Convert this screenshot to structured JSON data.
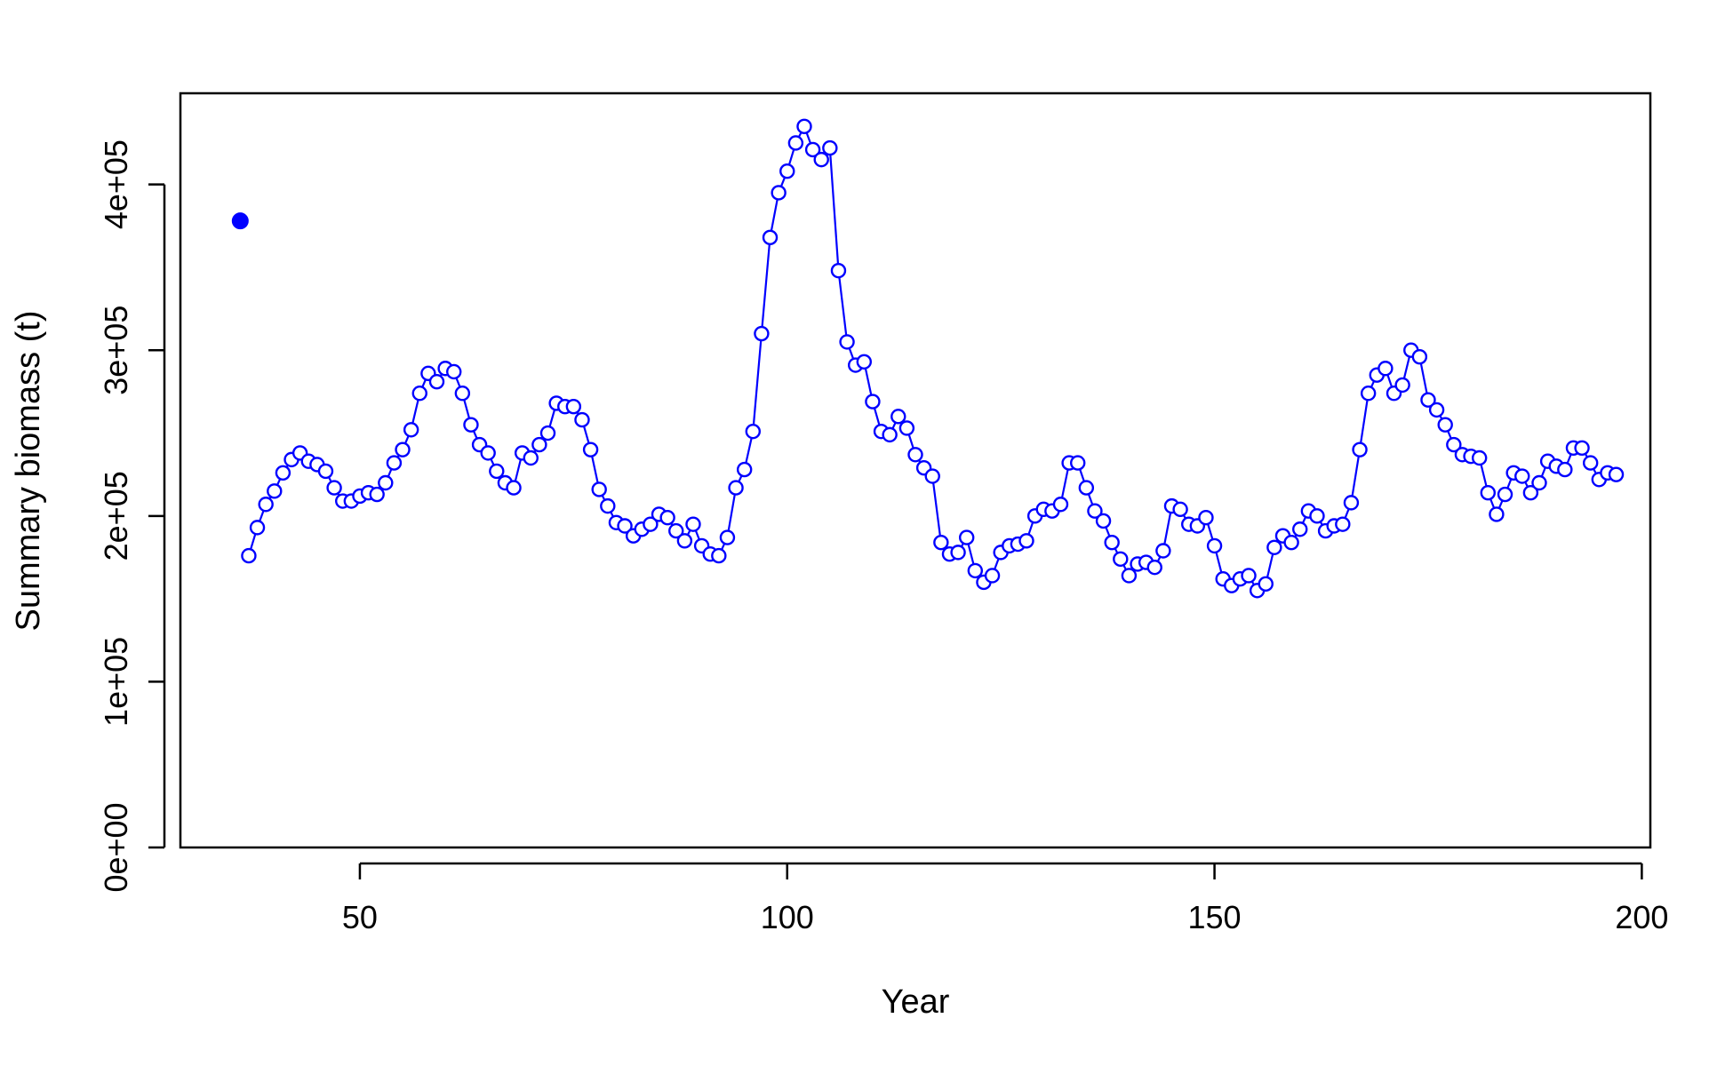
{
  "chart_data": {
    "type": "line",
    "xlabel": "Year",
    "ylabel": "Summary biomass (t)",
    "xlim": [
      29,
      201
    ],
    "ylim": [
      0,
      455000
    ],
    "xticks": [
      50,
      100,
      150,
      200
    ],
    "xtick_labels": [
      "50",
      "100",
      "150",
      "200"
    ],
    "yticks": [
      0,
      100000,
      200000,
      300000,
      400000
    ],
    "ytick_labels": [
      "0e+00",
      "1e+05",
      "2e+05",
      "3e+05",
      "4e+05"
    ],
    "grid": false,
    "legend": false,
    "color": "#0000ff",
    "series": [
      {
        "style": "line-with-open-circles",
        "x": [
          37,
          38,
          39,
          40,
          41,
          42,
          43,
          44,
          45,
          46,
          47,
          48,
          49,
          50,
          51,
          52,
          53,
          54,
          55,
          56,
          57,
          58,
          59,
          60,
          61,
          62,
          63,
          64,
          65,
          66,
          67,
          68,
          69,
          70,
          71,
          72,
          73,
          74,
          75,
          76,
          77,
          78,
          79,
          80,
          81,
          82,
          83,
          84,
          85,
          86,
          87,
          88,
          89,
          90,
          91,
          92,
          93,
          94,
          95,
          96,
          97,
          98,
          99,
          100,
          101,
          102,
          103,
          104,
          105,
          106,
          107,
          108,
          109,
          110,
          111,
          112,
          113,
          114,
          115,
          116,
          117,
          118,
          119,
          120,
          121,
          122,
          123,
          124,
          125,
          126,
          127,
          128,
          129,
          130,
          131,
          132,
          133,
          134,
          135,
          136,
          137,
          138,
          139,
          140,
          141,
          142,
          143,
          144,
          145,
          146,
          147,
          148,
          149,
          150,
          151,
          152,
          153,
          154,
          155,
          156,
          157,
          158,
          159,
          160,
          161,
          162,
          163,
          164,
          165,
          166,
          167,
          168,
          169,
          170,
          171,
          172,
          173,
          174,
          175,
          176,
          177,
          178,
          179,
          180,
          181,
          182,
          183,
          184,
          185,
          186,
          187,
          188,
          189,
          190,
          191,
          192,
          193,
          194,
          195,
          196,
          197
        ],
        "y": [
          176000,
          193000,
          207000,
          215000,
          226000,
          234000,
          238000,
          233000,
          231000,
          227000,
          217000,
          209000,
          209000,
          212000,
          214000,
          213000,
          220000,
          232000,
          240000,
          252000,
          274000,
          286000,
          281000,
          289000,
          287000,
          274000,
          255000,
          243000,
          238000,
          227000,
          220000,
          217000,
          238000,
          235000,
          243000,
          250000,
          268000,
          266000,
          266000,
          258000,
          240000,
          216000,
          206000,
          196000,
          194000,
          188000,
          192000,
          195000,
          201000,
          199000,
          191000,
          185000,
          195000,
          182000,
          177000,
          176000,
          187000,
          217000,
          228000,
          251000,
          310000,
          368000,
          395000,
          408000,
          425000,
          435000,
          421000,
          415000,
          422000,
          348000,
          305000,
          291000,
          293000,
          269000,
          251000,
          249000,
          260000,
          253000,
          237000,
          229000,
          224000,
          184000,
          177000,
          178000,
          187000,
          167000,
          160000,
          164000,
          178000,
          182000,
          183000,
          185000,
          200000,
          204000,
          203000,
          207000,
          232000,
          232000,
          217000,
          203000,
          197000,
          184000,
          174000,
          164000,
          171000,
          172000,
          169000,
          179000,
          206000,
          204000,
          195000,
          194000,
          199000,
          182000,
          162000,
          158000,
          162000,
          164000,
          155000,
          159000,
          181000,
          188000,
          184000,
          192000,
          203000,
          200000,
          191000,
          194000,
          195000,
          208000,
          240000,
          274000,
          285000,
          289000,
          274000,
          279000,
          300000,
          296000,
          270000,
          264000,
          255000,
          243000,
          237000,
          236000,
          235000,
          214000,
          201000,
          213000,
          226000,
          224000,
          214000,
          220000,
          233000,
          230000,
          228000,
          241000,
          241000,
          232000,
          222000,
          226000,
          225000
        ]
      },
      {
        "style": "filled-point",
        "x": [
          36
        ],
        "y": [
          378000
        ]
      }
    ]
  }
}
